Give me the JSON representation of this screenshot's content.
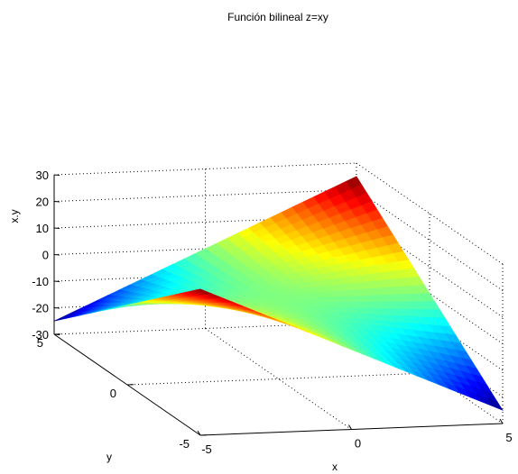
{
  "chart_data": {
    "type": "surface",
    "title": "Función bilineal z=xy",
    "xlabel": "x",
    "ylabel": "y",
    "zlabel": "x.y",
    "function": "z = x*y",
    "x_range": [
      -5,
      5
    ],
    "y_range": [
      -5,
      5
    ],
    "zlim": [
      -30,
      30
    ],
    "x_ticks": [
      {
        "value": -5,
        "label": "-5"
      },
      {
        "value": 0,
        "label": "0"
      },
      {
        "value": 5,
        "label": "5"
      }
    ],
    "y_ticks": [
      {
        "value": -5,
        "label": "-5"
      },
      {
        "value": 0,
        "label": "0"
      },
      {
        "value": 5,
        "label": "5"
      }
    ],
    "z_ticks": [
      {
        "value": 30,
        "label": "30"
      },
      {
        "value": 20,
        "label": "20"
      },
      {
        "value": 10,
        "label": "10"
      },
      {
        "value": 0,
        "label": "0"
      },
      {
        "value": -10,
        "label": "-10"
      },
      {
        "value": -20,
        "label": "-20"
      },
      {
        "value": -30,
        "label": "-30"
      }
    ],
    "corners": [
      {
        "x": 5,
        "y": 5,
        "z": 25
      },
      {
        "x": -5,
        "y": -5,
        "z": 25
      },
      {
        "x": -5,
        "y": 5,
        "z": -25
      },
      {
        "x": 5,
        "y": -5,
        "z": -25
      }
    ],
    "colormap": "jet",
    "colors": {
      "low": "#00008f",
      "mid": "#7fff7f",
      "high": "#800000"
    },
    "grid": true
  }
}
